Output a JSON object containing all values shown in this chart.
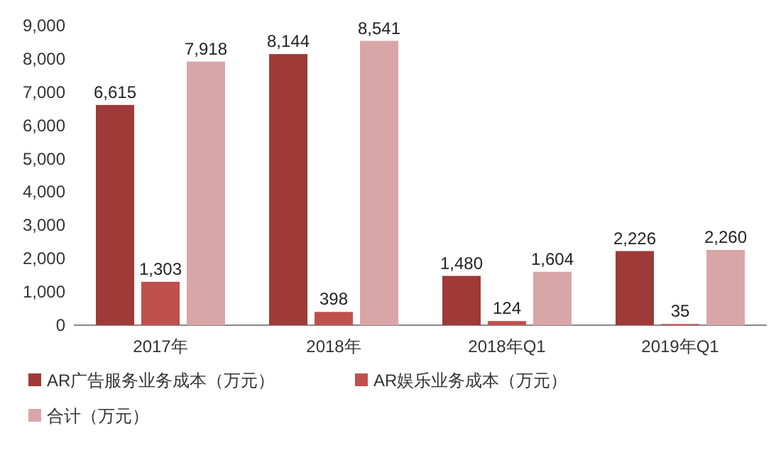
{
  "chart_data": {
    "type": "bar",
    "categories": [
      "2017年",
      "2018年",
      "2018年Q1",
      "2019年Q1"
    ],
    "series": [
      {
        "name": "AR广告服务业务成本（万元）",
        "color": "#9e3a38",
        "values": [
          6615,
          8144,
          1480,
          2226
        ],
        "value_labels": [
          "6,615",
          "8,144",
          "1,480",
          "2,226"
        ]
      },
      {
        "name": "AR娱乐业务成本（万元）",
        "color": "#c0504d",
        "values": [
          1303,
          398,
          124,
          35
        ],
        "value_labels": [
          "1,303",
          "398",
          "124",
          "35"
        ]
      },
      {
        "name": "合计（万元）",
        "color": "#d9a6a8",
        "values": [
          7918,
          8541,
          1604,
          2260
        ],
        "value_labels": [
          "7,918",
          "8,541",
          "1,604",
          "2,260"
        ]
      }
    ],
    "ylim": [
      0,
      9000
    ],
    "yticks": [
      0,
      {
        "value": 1000,
        "label": "1,000"
      },
      {
        "value": 2000,
        "label": "2,000"
      },
      {
        "value": 3000,
        "label": "3,000"
      },
      {
        "value": 4000,
        "label": "4,000"
      },
      {
        "value": 5000,
        "label": "5,000"
      },
      {
        "value": 6000,
        "label": "6,000"
      },
      {
        "value": 7000,
        "label": "7,000"
      },
      {
        "value": 8000,
        "label": "8,000"
      },
      {
        "value": 9000,
        "label": "9,000"
      }
    ],
    "legend": "bottom"
  }
}
